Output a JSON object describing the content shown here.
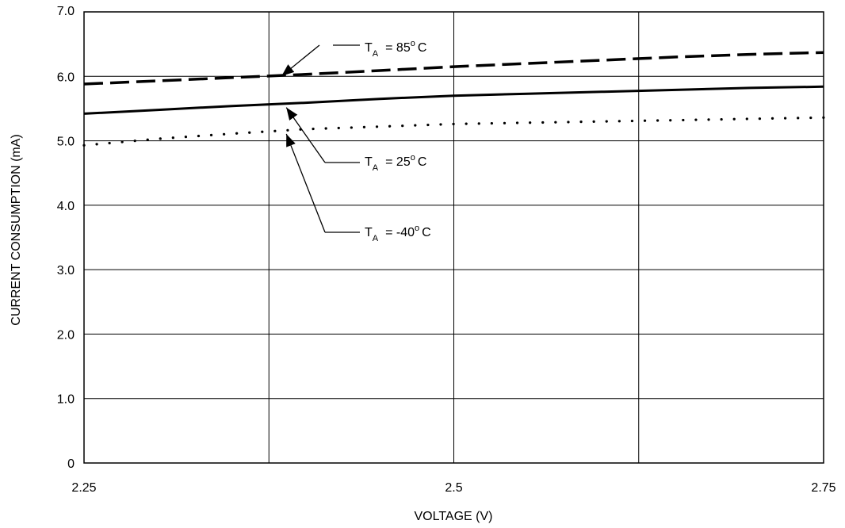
{
  "chart_data": {
    "type": "line",
    "title": "",
    "xlabel": "VOLTAGE (V)",
    "ylabel": "CURRENT CONSUMPTION (mA)",
    "xlim": [
      2.25,
      2.75
    ],
    "ylim": [
      0,
      7.0
    ],
    "x_ticks": [
      2.25,
      2.5,
      2.75
    ],
    "x_tick_labels": [
      "2.25",
      "2.5",
      "2.75"
    ],
    "y_ticks": [
      0,
      1.0,
      2.0,
      3.0,
      4.0,
      5.0,
      6.0,
      7.0
    ],
    "y_tick_labels": [
      "0",
      "1.0",
      "2.0",
      "3.0",
      "4.0",
      "5.0",
      "6.0",
      "7.0"
    ],
    "x_gridlines": [
      2.375,
      2.5,
      2.625
    ],
    "grid": true,
    "series": [
      {
        "style": "dashed",
        "x": [
          2.25,
          2.3,
          2.35,
          2.4,
          2.45,
          2.5,
          2.55,
          2.6,
          2.65,
          2.7,
          2.75
        ],
        "y": [
          5.88,
          5.93,
          5.98,
          6.03,
          6.09,
          6.15,
          6.2,
          6.25,
          6.3,
          6.34,
          6.37
        ]
      },
      {
        "style": "solid",
        "x": [
          2.25,
          2.3,
          2.35,
          2.4,
          2.45,
          2.5,
          2.55,
          2.6,
          2.65,
          2.7,
          2.75
        ],
        "y": [
          5.42,
          5.48,
          5.54,
          5.59,
          5.65,
          5.7,
          5.73,
          5.76,
          5.79,
          5.82,
          5.84
        ]
      },
      {
        "style": "dotted",
        "x": [
          2.25,
          2.3,
          2.35,
          2.4,
          2.45,
          2.5,
          2.55,
          2.6,
          2.65,
          2.7,
          2.75
        ],
        "y": [
          4.93,
          5.03,
          5.11,
          5.18,
          5.22,
          5.26,
          5.28,
          5.3,
          5.32,
          5.34,
          5.36
        ]
      }
    ],
    "annotations": [
      {
        "prefix": "T",
        "sub": "A",
        "suffix": "= 85",
        "sup": "o",
        "unit": "C",
        "target": [
          2.39,
          6.03
        ]
      },
      {
        "prefix": "T",
        "sub": "A",
        "suffix": "= 25",
        "sup": "o",
        "unit": "C",
        "target": [
          2.39,
          5.59
        ]
      },
      {
        "prefix": "T",
        "sub": "A",
        "suffix": "= -40",
        "sup": "o",
        "unit": "C",
        "target": [
          2.39,
          5.18
        ]
      }
    ]
  }
}
